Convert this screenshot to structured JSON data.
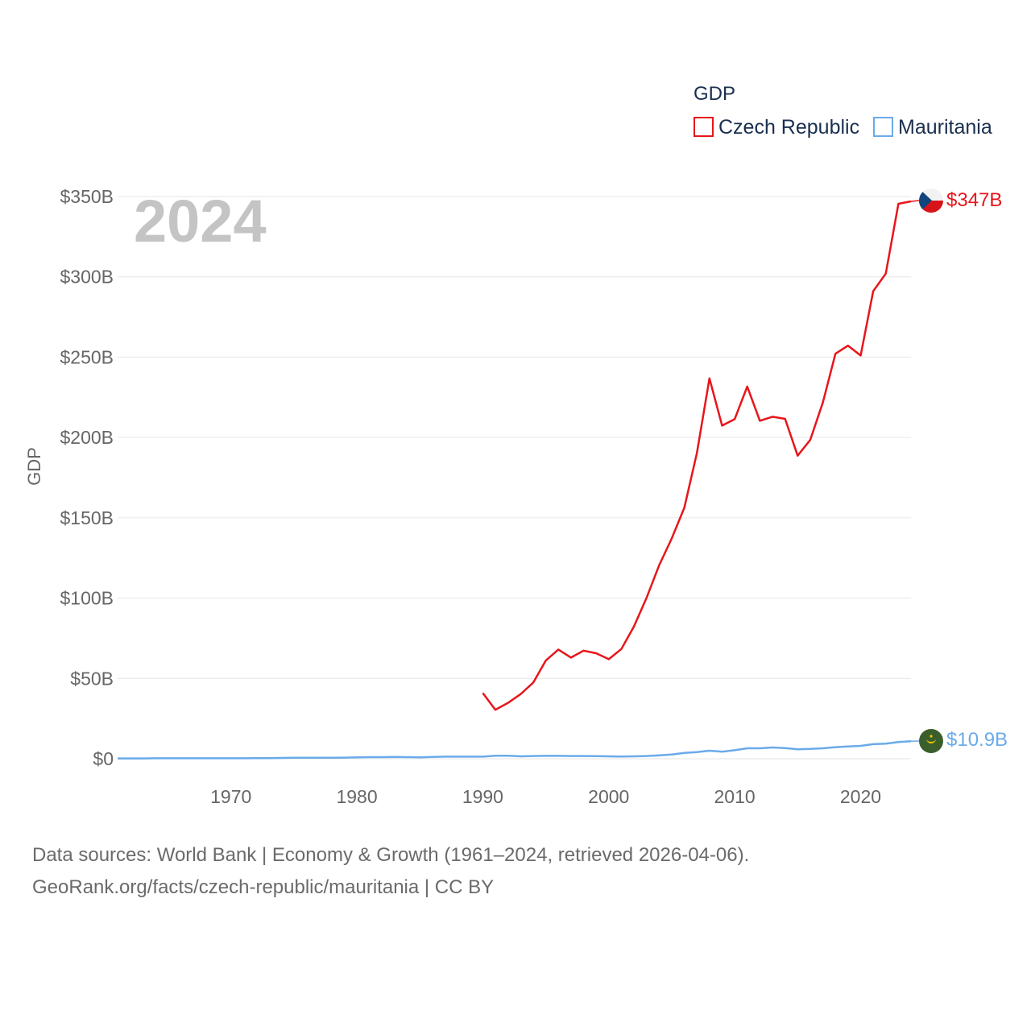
{
  "chart_data": {
    "type": "line",
    "title": "GDP",
    "ylabel": "GDP",
    "xlabel": "",
    "year_label": "2024",
    "x_ticks": [
      "1970",
      "1980",
      "1990",
      "2000",
      "2010",
      "2020"
    ],
    "y_ticks": [
      "$0",
      "$50B",
      "$100B",
      "$150B",
      "$200B",
      "$250B",
      "$300B",
      "$350B"
    ],
    "ylim": [
      0,
      350
    ],
    "xlim": [
      1961,
      2024
    ],
    "legend_position": "top-right",
    "series": [
      {
        "name": "Czech Republic",
        "color": "#e8151b",
        "end_label": "$347B",
        "flag_icon": "czech-flag-icon",
        "x": [
          1990,
          1991,
          1992,
          1993,
          1994,
          1995,
          1996,
          1997,
          1998,
          1999,
          2000,
          2001,
          2002,
          2003,
          2004,
          2005,
          2006,
          2007,
          2008,
          2009,
          2010,
          2011,
          2012,
          2013,
          2014,
          2015,
          2016,
          2017,
          2018,
          2019,
          2020,
          2021,
          2022,
          2023,
          2024
        ],
        "values": [
          40.9,
          30.5,
          34.8,
          40.2,
          47.4,
          61.1,
          68.0,
          63.0,
          67.3,
          65.7,
          62.0,
          68.3,
          82.3,
          100.2,
          120.4,
          137.1,
          156.3,
          190.3,
          236.8,
          207.4,
          211.4,
          231.7,
          210.4,
          212.9,
          211.6,
          188.7,
          198.5,
          221.8,
          252.1,
          257.2,
          251.0,
          291.1,
          302.0,
          345.5,
          347.0
        ]
      },
      {
        "name": "Mauritania",
        "color": "#6aabea",
        "end_label": "$10.9B",
        "flag_icon": "mauritania-flag-icon",
        "x": [
          1961,
          1962,
          1963,
          1964,
          1965,
          1966,
          1967,
          1968,
          1969,
          1970,
          1971,
          1972,
          1973,
          1974,
          1975,
          1976,
          1977,
          1978,
          1979,
          1980,
          1981,
          1982,
          1983,
          1984,
          1985,
          1986,
          1987,
          1988,
          1989,
          1990,
          1991,
          1992,
          1993,
          1994,
          1995,
          1996,
          1997,
          1998,
          1999,
          2000,
          2001,
          2002,
          2003,
          2004,
          2005,
          2006,
          2007,
          2008,
          2009,
          2010,
          2011,
          2012,
          2013,
          2014,
          2015,
          2016,
          2017,
          2018,
          2019,
          2020,
          2021,
          2022,
          2023,
          2024
        ],
        "values": [
          0.2,
          0.2,
          0.2,
          0.3,
          0.3,
          0.3,
          0.3,
          0.3,
          0.3,
          0.3,
          0.3,
          0.4,
          0.4,
          0.5,
          0.6,
          0.6,
          0.6,
          0.6,
          0.7,
          0.9,
          1.0,
          1.0,
          1.1,
          1.0,
          0.9,
          1.1,
          1.3,
          1.3,
          1.3,
          1.3,
          1.9,
          1.9,
          1.5,
          1.7,
          1.8,
          1.8,
          1.7,
          1.7,
          1.6,
          1.5,
          1.4,
          1.5,
          1.7,
          2.1,
          2.6,
          3.6,
          4.1,
          5.0,
          4.4,
          5.3,
          6.5,
          6.5,
          7.0,
          6.6,
          5.9,
          6.1,
          6.5,
          7.2,
          7.6,
          8.0,
          9.1,
          9.4,
          10.4,
          10.9
        ]
      }
    ]
  },
  "footer": {
    "line1": "Data sources: World Bank | Economy & Growth (1961–2024, retrieved 2026-04-06).",
    "line2": "GeoRank.org/facts/czech-republic/mauritania | CC BY"
  }
}
